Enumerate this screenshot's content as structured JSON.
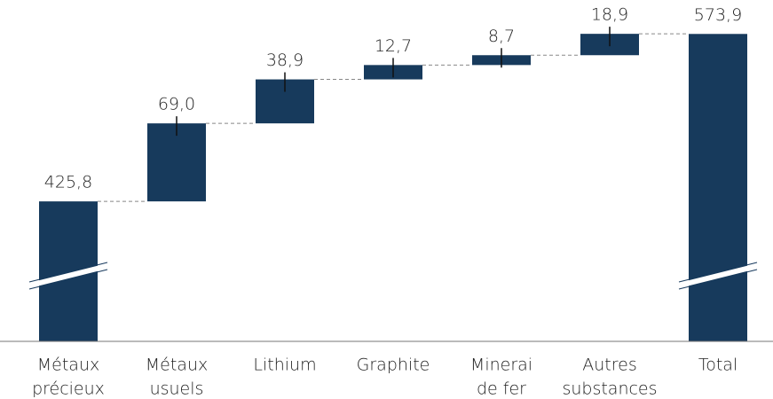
{
  "chart_data": {
    "type": "waterfall",
    "categories": [
      [
        "Métaux",
        "précieux"
      ],
      [
        "Métaux",
        "usuels"
      ],
      [
        "Lithium"
      ],
      [
        "Graphite"
      ],
      [
        "Minerai",
        "de fer"
      ],
      [
        "Autres",
        "substances"
      ],
      [
        "Total"
      ]
    ],
    "measure": [
      "absolute",
      "relative",
      "relative",
      "relative",
      "relative",
      "relative",
      "total"
    ],
    "values": [
      425.8,
      69.0,
      38.9,
      12.7,
      8.7,
      18.9,
      573.9
    ],
    "value_labels": [
      "425,8",
      "69,0",
      "38,9",
      "12,7",
      "8,7",
      "18,9",
      "573,9"
    ],
    "color": "#173a5c",
    "ylim": [
      302,
      576
    ]
  }
}
